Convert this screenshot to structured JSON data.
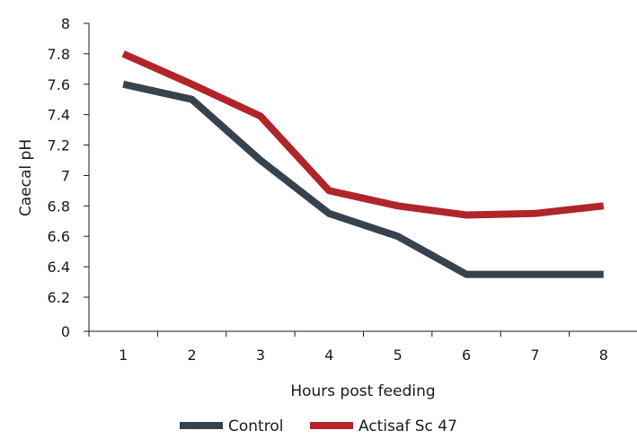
{
  "chart_data": {
    "type": "line",
    "title": "",
    "xlabel": "Hours post feeding",
    "ylabel": "Caecal pH",
    "categories": [
      "1",
      "2",
      "3",
      "4",
      "5",
      "6",
      "7",
      "8"
    ],
    "y_ticks": [
      "0",
      "6.2",
      "6.4",
      "6.6",
      "6.8",
      "7",
      "7.2",
      "7.4",
      "7.6",
      "7.8",
      "8"
    ],
    "y_tick_values": [
      6.0,
      6.2,
      6.4,
      6.6,
      6.8,
      7.0,
      7.2,
      7.4,
      7.6,
      7.8,
      8.0
    ],
    "ylim": [
      6.0,
      8.0
    ],
    "y_axis_break": "lowest tick labelled 0",
    "grid": false,
    "legend_position": "bottom",
    "series": [
      {
        "name": "Control",
        "color": "#36424d",
        "values": [
          7.6,
          7.5,
          7.1,
          6.75,
          6.6,
          6.35,
          6.35,
          6.35
        ]
      },
      {
        "name": "Actisaf Sc 47",
        "color": "#b0252a",
        "values": [
          7.8,
          7.6,
          7.39,
          6.9,
          6.8,
          6.74,
          6.75,
          6.8
        ]
      }
    ]
  }
}
